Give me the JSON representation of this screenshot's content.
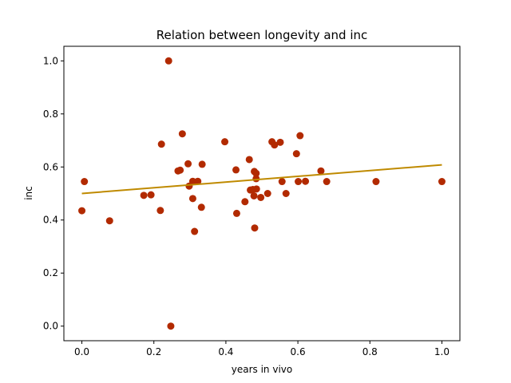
{
  "chart_data": {
    "type": "scatter",
    "title": "Relation between longevity and inc",
    "xlabel": "years in vivo",
    "ylabel": "inc",
    "xlim": [
      -0.05,
      1.05
    ],
    "ylim": [
      -0.055,
      1.055
    ],
    "xticks": [
      "0.0",
      "0.2",
      "0.4",
      "0.6",
      "0.8",
      "1.0"
    ],
    "yticks": [
      "0.0",
      "0.2",
      "0.4",
      "0.6",
      "0.8",
      "1.0"
    ],
    "grid": false,
    "legend": "none",
    "points_color": "#b22a00",
    "fit_color": "#bf8a00",
    "points": [
      {
        "x": 0.0,
        "y": 0.435
      },
      {
        "x": 0.007,
        "y": 0.545
      },
      {
        "x": 0.077,
        "y": 0.397
      },
      {
        "x": 0.172,
        "y": 0.493
      },
      {
        "x": 0.192,
        "y": 0.495
      },
      {
        "x": 0.218,
        "y": 0.436
      },
      {
        "x": 0.221,
        "y": 0.686
      },
      {
        "x": 0.241,
        "y": 1.0
      },
      {
        "x": 0.247,
        "y": 0.0
      },
      {
        "x": 0.267,
        "y": 0.585
      },
      {
        "x": 0.273,
        "y": 0.588
      },
      {
        "x": 0.279,
        "y": 0.725
      },
      {
        "x": 0.295,
        "y": 0.612
      },
      {
        "x": 0.298,
        "y": 0.528
      },
      {
        "x": 0.308,
        "y": 0.546
      },
      {
        "x": 0.308,
        "y": 0.481
      },
      {
        "x": 0.313,
        "y": 0.357
      },
      {
        "x": 0.322,
        "y": 0.546
      },
      {
        "x": 0.332,
        "y": 0.448
      },
      {
        "x": 0.334,
        "y": 0.61
      },
      {
        "x": 0.397,
        "y": 0.695
      },
      {
        "x": 0.428,
        "y": 0.589
      },
      {
        "x": 0.43,
        "y": 0.425
      },
      {
        "x": 0.453,
        "y": 0.469
      },
      {
        "x": 0.465,
        "y": 0.628
      },
      {
        "x": 0.468,
        "y": 0.513
      },
      {
        "x": 0.475,
        "y": 0.515
      },
      {
        "x": 0.478,
        "y": 0.491
      },
      {
        "x": 0.479,
        "y": 0.583
      },
      {
        "x": 0.48,
        "y": 0.37
      },
      {
        "x": 0.484,
        "y": 0.576
      },
      {
        "x": 0.485,
        "y": 0.517
      },
      {
        "x": 0.484,
        "y": 0.556
      },
      {
        "x": 0.497,
        "y": 0.485
      },
      {
        "x": 0.516,
        "y": 0.5
      },
      {
        "x": 0.528,
        "y": 0.695
      },
      {
        "x": 0.535,
        "y": 0.683
      },
      {
        "x": 0.551,
        "y": 0.693
      },
      {
        "x": 0.556,
        "y": 0.545
      },
      {
        "x": 0.567,
        "y": 0.5
      },
      {
        "x": 0.596,
        "y": 0.65
      },
      {
        "x": 0.601,
        "y": 0.545
      },
      {
        "x": 0.606,
        "y": 0.718
      },
      {
        "x": 0.621,
        "y": 0.546
      },
      {
        "x": 0.664,
        "y": 0.585
      },
      {
        "x": 0.68,
        "y": 0.545
      },
      {
        "x": 0.817,
        "y": 0.545
      },
      {
        "x": 1.0,
        "y": 0.545
      }
    ],
    "fit_line": {
      "x": [
        0.0,
        1.0
      ],
      "y": [
        0.5,
        0.608
      ]
    }
  }
}
